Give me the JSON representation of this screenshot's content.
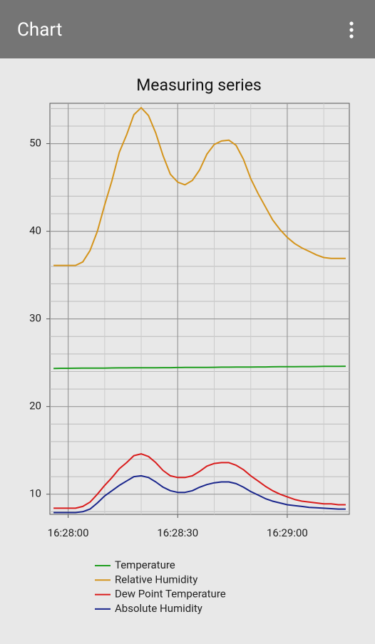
{
  "app_bar": {
    "title": "Chart"
  },
  "chart_data": {
    "type": "line",
    "title": "Measuring series",
    "x": [
      "16:27:56",
      "16:27:58",
      "16:28:00",
      "16:28:02",
      "16:28:04",
      "16:28:06",
      "16:28:08",
      "16:28:10",
      "16:28:12",
      "16:28:14",
      "16:28:16",
      "16:28:18",
      "16:28:20",
      "16:28:22",
      "16:28:24",
      "16:28:26",
      "16:28:28",
      "16:28:30",
      "16:28:32",
      "16:28:34",
      "16:28:36",
      "16:28:38",
      "16:28:40",
      "16:28:42",
      "16:28:44",
      "16:28:46",
      "16:28:48",
      "16:28:50",
      "16:28:52",
      "16:28:54",
      "16:28:56",
      "16:28:58",
      "16:29:00",
      "16:29:02",
      "16:29:04",
      "16:29:06",
      "16:29:08",
      "16:29:10",
      "16:29:12",
      "16:29:14",
      "16:29:16"
    ],
    "series": [
      {
        "name": "Temperature",
        "color": "#1f9e1f",
        "values": [
          24.35,
          24.36,
          24.36,
          24.37,
          24.38,
          24.38,
          24.39,
          24.39,
          24.4,
          24.41,
          24.41,
          24.42,
          24.42,
          24.43,
          24.43,
          24.44,
          24.44,
          24.45,
          24.46,
          24.46,
          24.47,
          24.47,
          24.48,
          24.49,
          24.49,
          24.5,
          24.5,
          24.51,
          24.52,
          24.52,
          24.53,
          24.54,
          24.54,
          24.55,
          24.56,
          24.56,
          24.57,
          24.58,
          24.58,
          24.59,
          24.6
        ]
      },
      {
        "name": "Relative Humidity",
        "color": "#d4941c",
        "values": [
          36.1,
          36.1,
          36.1,
          36.1,
          36.5,
          37.8,
          40.0,
          43.0,
          45.8,
          49.0,
          51.0,
          53.3,
          54.1,
          53.2,
          51.2,
          48.6,
          46.5,
          45.6,
          45.3,
          45.8,
          47.0,
          48.8,
          49.9,
          50.3,
          50.4,
          49.8,
          48.2,
          46.0,
          44.3,
          42.8,
          41.3,
          40.2,
          39.3,
          38.6,
          38.1,
          37.7,
          37.3,
          37.0,
          36.9,
          36.9,
          36.9
        ]
      },
      {
        "name": "Dew Point Temperature",
        "color": "#d91c1c",
        "values": [
          8.4,
          8.4,
          8.4,
          8.4,
          8.6,
          9.1,
          10.0,
          11.0,
          11.9,
          12.9,
          13.6,
          14.4,
          14.6,
          14.3,
          13.6,
          12.7,
          12.1,
          11.9,
          11.9,
          12.1,
          12.6,
          13.2,
          13.5,
          13.6,
          13.6,
          13.3,
          12.8,
          12.1,
          11.5,
          10.9,
          10.4,
          10.0,
          9.7,
          9.4,
          9.2,
          9.1,
          9.0,
          8.9,
          8.9,
          8.8,
          8.8
        ]
      },
      {
        "name": "Absolute Humidity",
        "color": "#1a268c",
        "values": [
          7.9,
          7.9,
          7.9,
          7.9,
          8.0,
          8.3,
          9.0,
          9.8,
          10.4,
          11.0,
          11.5,
          12.0,
          12.1,
          11.9,
          11.4,
          10.8,
          10.4,
          10.2,
          10.2,
          10.4,
          10.8,
          11.1,
          11.3,
          11.4,
          11.4,
          11.2,
          10.8,
          10.3,
          9.9,
          9.5,
          9.2,
          9.0,
          8.8,
          8.7,
          8.6,
          8.5,
          8.45,
          8.4,
          8.35,
          8.3,
          8.3
        ]
      }
    ],
    "xlim": [
      "16:27:55",
      "16:29:17"
    ],
    "xticks": [
      "16:28:00",
      "16:28:30",
      "16:29:00"
    ],
    "x_minor_ticks": [
      "16:28:10",
      "16:28:20",
      "16:28:40",
      "16:28:50",
      "16:29:10"
    ],
    "ylim": [
      7.7,
      54.6
    ],
    "yticks": [
      10,
      20,
      30,
      40,
      50
    ],
    "y_minor_ticks": [
      8,
      12,
      14,
      16,
      18,
      22,
      24,
      26,
      28,
      32,
      34,
      36,
      38,
      42,
      44,
      46,
      48,
      52,
      54
    ],
    "grid": true,
    "legend": "bottom"
  }
}
